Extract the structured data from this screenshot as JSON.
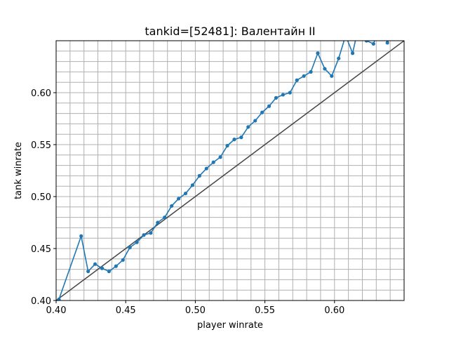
{
  "chart_data": {
    "type": "line",
    "title": "tankid=[52481]: Валентайн II",
    "xlabel": "player winrate",
    "ylabel": "tank winrate",
    "xlim": [
      0.4,
      0.65
    ],
    "ylim": [
      0.4,
      0.65
    ],
    "xticks": [
      0.4,
      0.45,
      0.5,
      0.55,
      0.6
    ],
    "yticks": [
      0.4,
      0.45,
      0.5,
      0.55,
      0.6
    ],
    "xtick_labels": [
      "0.40",
      "0.45",
      "0.50",
      "0.55",
      "0.60"
    ],
    "ytick_labels": [
      "0.40",
      "0.45",
      "0.50",
      "0.55",
      "0.60"
    ],
    "grid": true,
    "minor_grid_step": 0.01,
    "reference_line": {
      "x": [
        0.4,
        0.65
      ],
      "y": [
        0.4,
        0.65
      ],
      "color": "#444444"
    },
    "series": [
      {
        "color": "#1f77b4",
        "x": [
          0.402,
          0.418,
          0.423,
          0.428,
          0.433,
          0.438,
          0.443,
          0.448,
          0.453,
          0.458,
          0.463,
          0.468,
          0.473,
          0.478,
          0.483,
          0.488,
          0.493,
          0.498,
          0.503,
          0.508,
          0.513,
          0.518,
          0.523,
          0.528,
          0.533,
          0.538,
          0.543,
          0.548,
          0.553,
          0.558,
          0.563,
          0.568,
          0.573,
          0.578,
          0.583,
          0.588,
          0.593,
          0.598,
          0.603,
          0.608,
          0.613,
          0.618,
          0.623,
          0.628,
          0.633,
          0.638,
          0.643,
          0.648
        ],
        "y": [
          0.401,
          0.462,
          0.428,
          0.435,
          0.431,
          0.428,
          0.433,
          0.439,
          0.451,
          0.456,
          0.463,
          0.465,
          0.475,
          0.48,
          0.491,
          0.498,
          0.503,
          0.511,
          0.52,
          0.527,
          0.533,
          0.538,
          0.549,
          0.555,
          0.557,
          0.567,
          0.573,
          0.581,
          0.587,
          0.595,
          0.598,
          0.6,
          0.612,
          0.616,
          0.62,
          0.638,
          0.623,
          0.616,
          0.633,
          0.655,
          0.638,
          0.668,
          0.65,
          0.647,
          0.665,
          0.648,
          0.662,
          0.652
        ]
      }
    ]
  }
}
